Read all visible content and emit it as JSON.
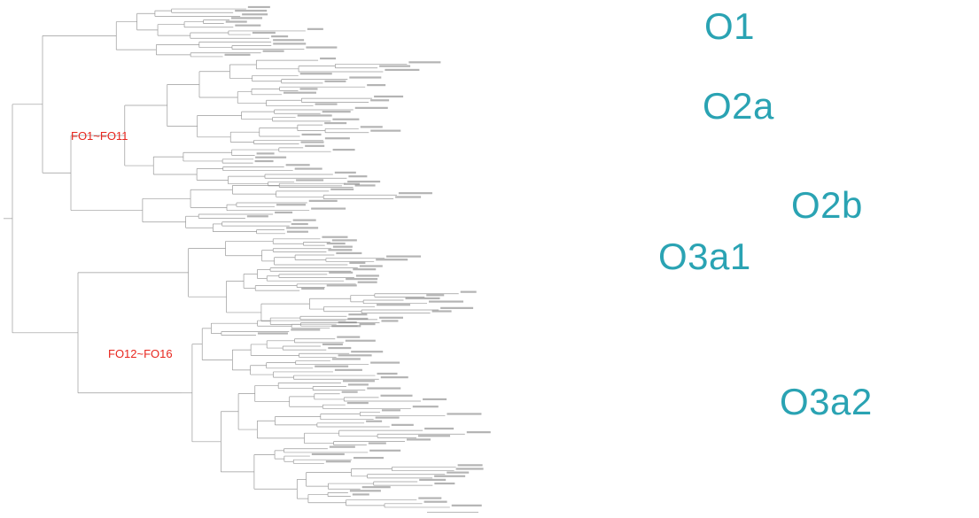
{
  "colors": {
    "clade_label": "#2aa3b3",
    "group_label": "#e8261e",
    "branch": "#9a9a9a",
    "leaf_text": "#777777"
  },
  "clade_labels": [
    "O1",
    "O2a",
    "O2b",
    "O3a1",
    "O3a2"
  ],
  "group_labels": [
    "FO1~FO11",
    "FO12~FO16"
  ]
}
